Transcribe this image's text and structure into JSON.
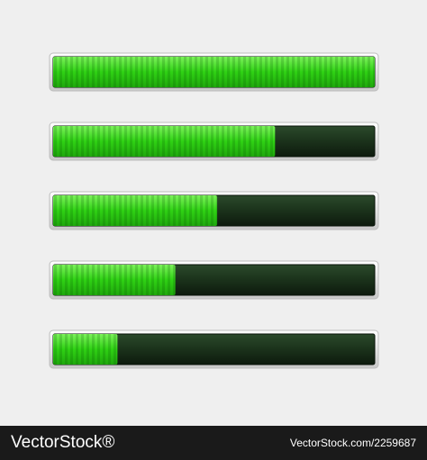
{
  "progress_bars": {
    "values": [
      100,
      69,
      51,
      38,
      20
    ],
    "max": 100
  },
  "footer": {
    "brand": "VectorStock®",
    "id": "VectorStock.com/2259687"
  }
}
